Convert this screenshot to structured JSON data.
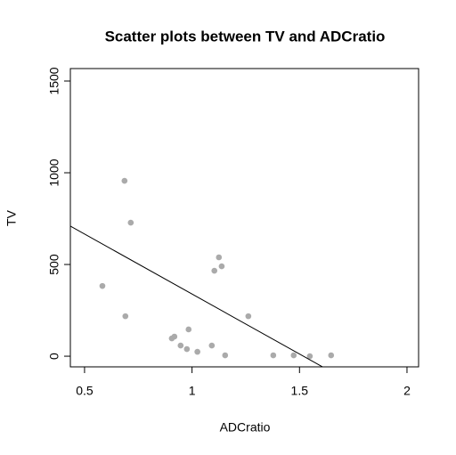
{
  "chart_data": {
    "type": "scatter",
    "title": "Scatter plots between TV and ADCratio",
    "x_label": "ADCratio",
    "y_label": "TV",
    "x": [
      0.583,
      0.686,
      0.715,
      0.69,
      0.906,
      0.918,
      0.947,
      0.976,
      0.984,
      1.025,
      1.092,
      1.104,
      1.125,
      1.138,
      1.154,
      1.262,
      1.378,
      1.473,
      1.548,
      1.647
    ],
    "values": [
      383,
      956,
      728,
      218,
      97,
      107,
      58,
      39,
      146,
      24,
      58,
      466,
      539,
      490,
      5,
      218,
      5,
      5,
      0,
      5
    ],
    "color": "#aaaaaa",
    "regression_line": {
      "intercept": 993,
      "slope": -654
    },
    "xlim": [
      0.434,
      2.054
    ],
    "xticks": [
      0.5,
      1.0,
      1.5,
      2.0
    ],
    "ylim": [
      -58,
      1568
    ],
    "yticks": [
      0,
      500,
      1000,
      1500
    ]
  }
}
